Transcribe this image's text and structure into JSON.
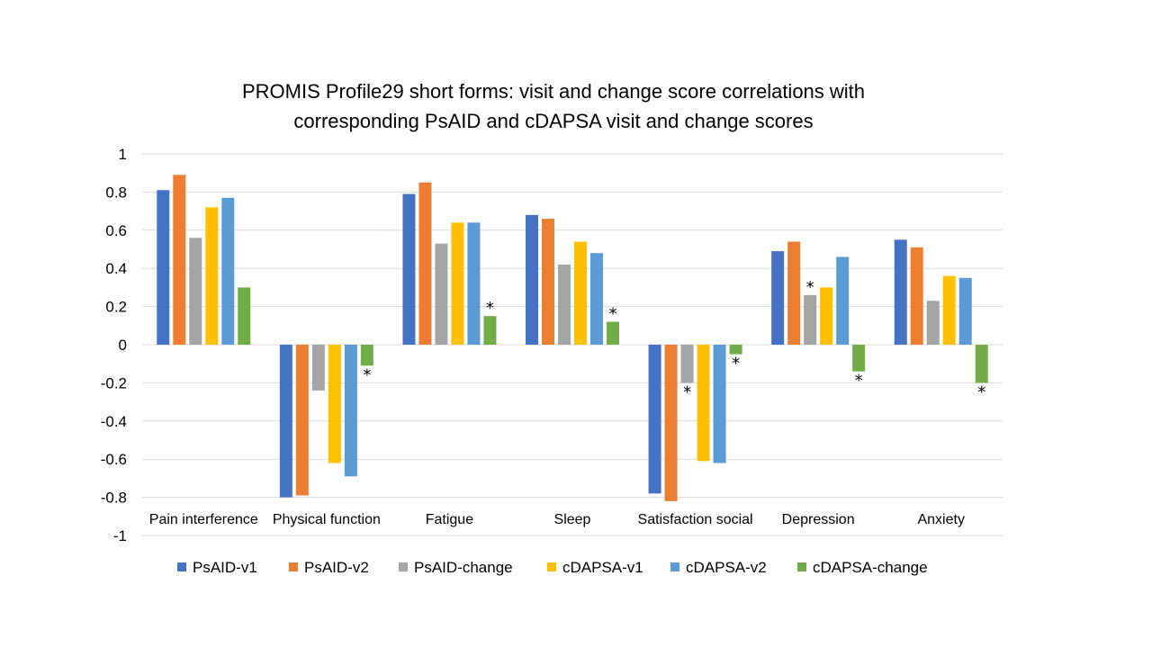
{
  "chart_data": {
    "type": "bar",
    "title": "PROMIS Profile29 short forms: visit and change score correlations with corresponding PsAID and cDAPSA visit and change scores",
    "title_lines": [
      "PROMIS Profile29 short forms: visit and change score correlations with",
      "corresponding PsAID and cDAPSA visit and change scores"
    ],
    "xlabel": "",
    "ylabel": "",
    "ylim": [
      -1,
      1
    ],
    "yticks": [
      1,
      0.8,
      0.6,
      0.4,
      0.2,
      0,
      -0.2,
      -0.4,
      -0.6,
      -0.8,
      -1
    ],
    "ytick_labels": [
      "1",
      "0.8",
      "0.6",
      "0.4",
      "0.2",
      "0",
      "-0.2",
      "-0.4",
      "-0.6",
      "-0.8",
      "-1"
    ],
    "grid": true,
    "legend_position": "bottom",
    "categories": [
      "Pain interference",
      "Physical function",
      "Fatigue",
      "Sleep",
      "Satisfaction social",
      "Depression",
      "Anxiety"
    ],
    "series": [
      {
        "name": "PsAID-v1",
        "color": "#4472C4",
        "values": [
          0.81,
          -0.8,
          0.79,
          0.68,
          -0.78,
          0.49,
          0.55
        ]
      },
      {
        "name": "PsAID-v2",
        "color": "#ED7D31",
        "values": [
          0.89,
          -0.79,
          0.85,
          0.66,
          -0.82,
          0.54,
          0.51
        ]
      },
      {
        "name": "PsAID-change",
        "color": "#A5A5A5",
        "values": [
          0.56,
          -0.24,
          0.53,
          0.42,
          -0.2,
          0.26,
          0.23
        ]
      },
      {
        "name": "cDAPSA-v1",
        "color": "#FFC000",
        "values": [
          0.72,
          -0.62,
          0.64,
          0.54,
          -0.61,
          0.3,
          0.36
        ]
      },
      {
        "name": "cDAPSA-v2",
        "color": "#5B9BD5",
        "values": [
          0.77,
          -0.69,
          0.64,
          0.48,
          -0.62,
          0.46,
          0.35
        ]
      },
      {
        "name": "cDAPSA-change",
        "color": "#70AD47",
        "values": [
          0.3,
          -0.11,
          0.15,
          0.12,
          -0.05,
          -0.14,
          -0.2
        ]
      }
    ],
    "annotations": [
      {
        "text": "*",
        "category": "Physical function",
        "series": "cDAPSA-change"
      },
      {
        "text": "*",
        "category": "Fatigue",
        "series": "cDAPSA-change"
      },
      {
        "text": "*",
        "category": "Sleep",
        "series": "cDAPSA-change"
      },
      {
        "text": "*",
        "category": "Satisfaction social",
        "series": "PsAID-change"
      },
      {
        "text": "*",
        "category": "Satisfaction social",
        "series": "cDAPSA-change"
      },
      {
        "text": "*",
        "category": "Depression",
        "series": "PsAID-change"
      },
      {
        "text": "*",
        "category": "Depression",
        "series": "cDAPSA-change"
      },
      {
        "text": "*",
        "category": "Anxiety",
        "series": "cDAPSA-change"
      }
    ]
  }
}
